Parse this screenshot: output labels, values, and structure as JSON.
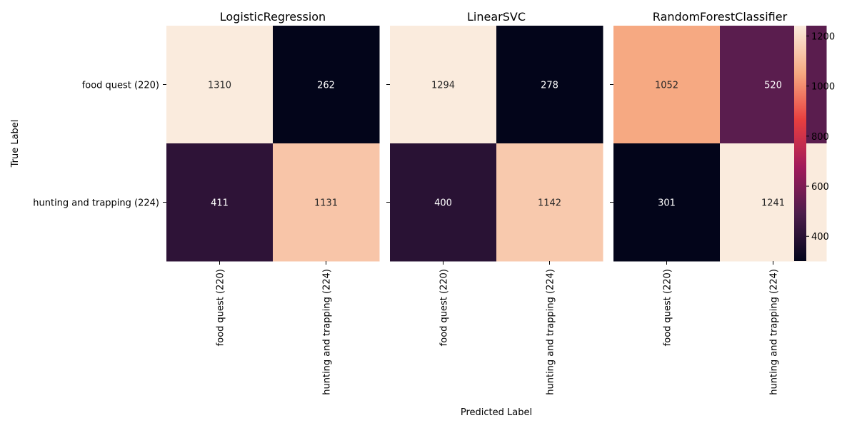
{
  "chart_data": {
    "type": "heatmap",
    "xlabel": "Predicted Label",
    "ylabel": "True Label",
    "row_labels": [
      "food quest (220)",
      "hunting and trapping (224)"
    ],
    "col_labels": [
      "food quest (220)",
      "hunting and trapping (224)"
    ],
    "panels": [
      {
        "title": "LogisticRegression",
        "values": [
          [
            1310,
            262
          ],
          [
            411,
            1131
          ]
        ]
      },
      {
        "title": "LinearSVC",
        "values": [
          [
            1294,
            278
          ],
          [
            400,
            1142
          ]
        ]
      },
      {
        "title": "RandomForestClassifier",
        "values": [
          [
            1052,
            520
          ],
          [
            301,
            1241
          ]
        ]
      }
    ],
    "colorbar": {
      "vmin": 301,
      "vmax": 1241,
      "ticks": [
        400,
        600,
        800,
        1000,
        1200
      ],
      "colormap": "rocket",
      "colormap_stops": [
        "#03051a",
        "#4c1d4b",
        "#a11a5b",
        "#e83f3f",
        "#f6aa82",
        "#faebdd"
      ],
      "light_text_color": "#ffffff",
      "dark_text_color": "#262626"
    },
    "grid": false
  }
}
